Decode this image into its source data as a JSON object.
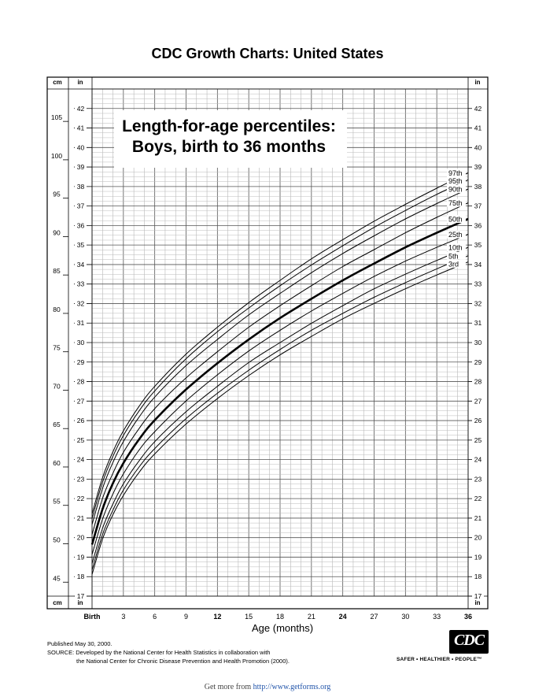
{
  "page": {
    "title": "CDC Growth Charts: United States",
    "published": "Published May 30, 2000.",
    "source_line1": "SOURCE: Developed by the National Center for Health Statistics in collaboration with",
    "source_line2": "the National Center for Chronic Disease Prevention and Health Promotion (2000).",
    "logo_text": "CDC",
    "logo_icon": "cdc-logo-icon",
    "tagline": "SAFER • HEALTHIER • PEOPLE™",
    "footer_prefix": "Get more from ",
    "footer_link": "http://www.getforms.org"
  },
  "chart_data": {
    "type": "line",
    "title_line1": "Length-for-age percentiles:",
    "title_line2": "Boys, birth to 36 months",
    "xlabel": "Age (months)",
    "x_ticks": [
      "Birth",
      "3",
      "6",
      "9",
      "12",
      "15",
      "18",
      "21",
      "24",
      "27",
      "30",
      "33",
      "36"
    ],
    "x_bold_ticks": [
      "Birth",
      "12",
      "24",
      "36"
    ],
    "xlim": [
      0,
      36
    ],
    "ylim_cm": [
      43.18,
      109.22
    ],
    "cm_ticks": [
      45,
      50,
      55,
      60,
      65,
      70,
      75,
      80,
      85,
      90,
      95,
      100,
      105
    ],
    "in_ticks": [
      17,
      18,
      19,
      20,
      21,
      22,
      23,
      24,
      25,
      26,
      27,
      28,
      29,
      30,
      31,
      32,
      33,
      34,
      35,
      36,
      37,
      38,
      39,
      40,
      41,
      42
    ],
    "unit_cm": "cm",
    "unit_in": "in",
    "grid": true,
    "bold_series": "50th",
    "x": [
      0,
      1,
      2,
      3,
      4.5,
      6,
      9,
      12,
      15,
      18,
      21,
      24,
      27,
      30,
      33,
      36
    ],
    "series": [
      {
        "name": "97th",
        "values": [
          53.9,
          58.6,
          62.0,
          64.7,
          67.9,
          70.5,
          74.7,
          78.2,
          81.4,
          84.3,
          87.1,
          89.6,
          92.0,
          94.2,
          96.3,
          98.3
        ]
      },
      {
        "name": "95th",
        "values": [
          53.3,
          58.0,
          61.4,
          64.1,
          67.3,
          69.9,
          74.1,
          77.6,
          80.7,
          83.6,
          86.3,
          88.8,
          91.2,
          93.4,
          95.5,
          97.4
        ]
      },
      {
        "name": "90th",
        "values": [
          52.5,
          57.2,
          60.6,
          63.3,
          66.5,
          69.1,
          73.2,
          76.6,
          79.8,
          82.6,
          85.3,
          87.8,
          90.1,
          92.3,
          94.3,
          96.2
        ]
      },
      {
        "name": "75th",
        "values": [
          51.2,
          55.9,
          59.2,
          61.9,
          65.0,
          67.6,
          71.6,
          75.0,
          78.2,
          81.0,
          83.6,
          86.1,
          88.3,
          90.5,
          92.5,
          94.4
        ]
      },
      {
        "name": "50th",
        "values": [
          49.9,
          54.5,
          57.9,
          60.5,
          63.6,
          66.1,
          70.1,
          73.5,
          76.6,
          79.4,
          81.9,
          84.3,
          86.5,
          88.6,
          90.5,
          92.3
        ]
      },
      {
        "name": "25th",
        "values": [
          48.6,
          53.2,
          56.5,
          59.1,
          62.2,
          64.6,
          68.6,
          72.0,
          75.1,
          77.8,
          80.3,
          82.6,
          84.8,
          86.8,
          88.6,
          90.3
        ]
      },
      {
        "name": "10th",
        "values": [
          47.4,
          52.0,
          55.2,
          57.8,
          60.8,
          63.3,
          67.2,
          70.5,
          73.6,
          76.2,
          78.7,
          81.0,
          83.2,
          85.1,
          86.9,
          88.6
        ]
      },
      {
        "name": "5th",
        "values": [
          46.6,
          51.2,
          54.4,
          57.0,
          60.0,
          62.4,
          66.3,
          69.6,
          72.6,
          75.3,
          77.8,
          80.0,
          82.1,
          84.0,
          85.8,
          87.5
        ]
      },
      {
        "name": "3rd",
        "values": [
          46.0,
          50.6,
          53.8,
          56.3,
          59.3,
          61.7,
          65.6,
          68.9,
          71.9,
          74.6,
          77.0,
          79.3,
          81.3,
          83.2,
          85.0,
          86.7
        ]
      }
    ]
  }
}
